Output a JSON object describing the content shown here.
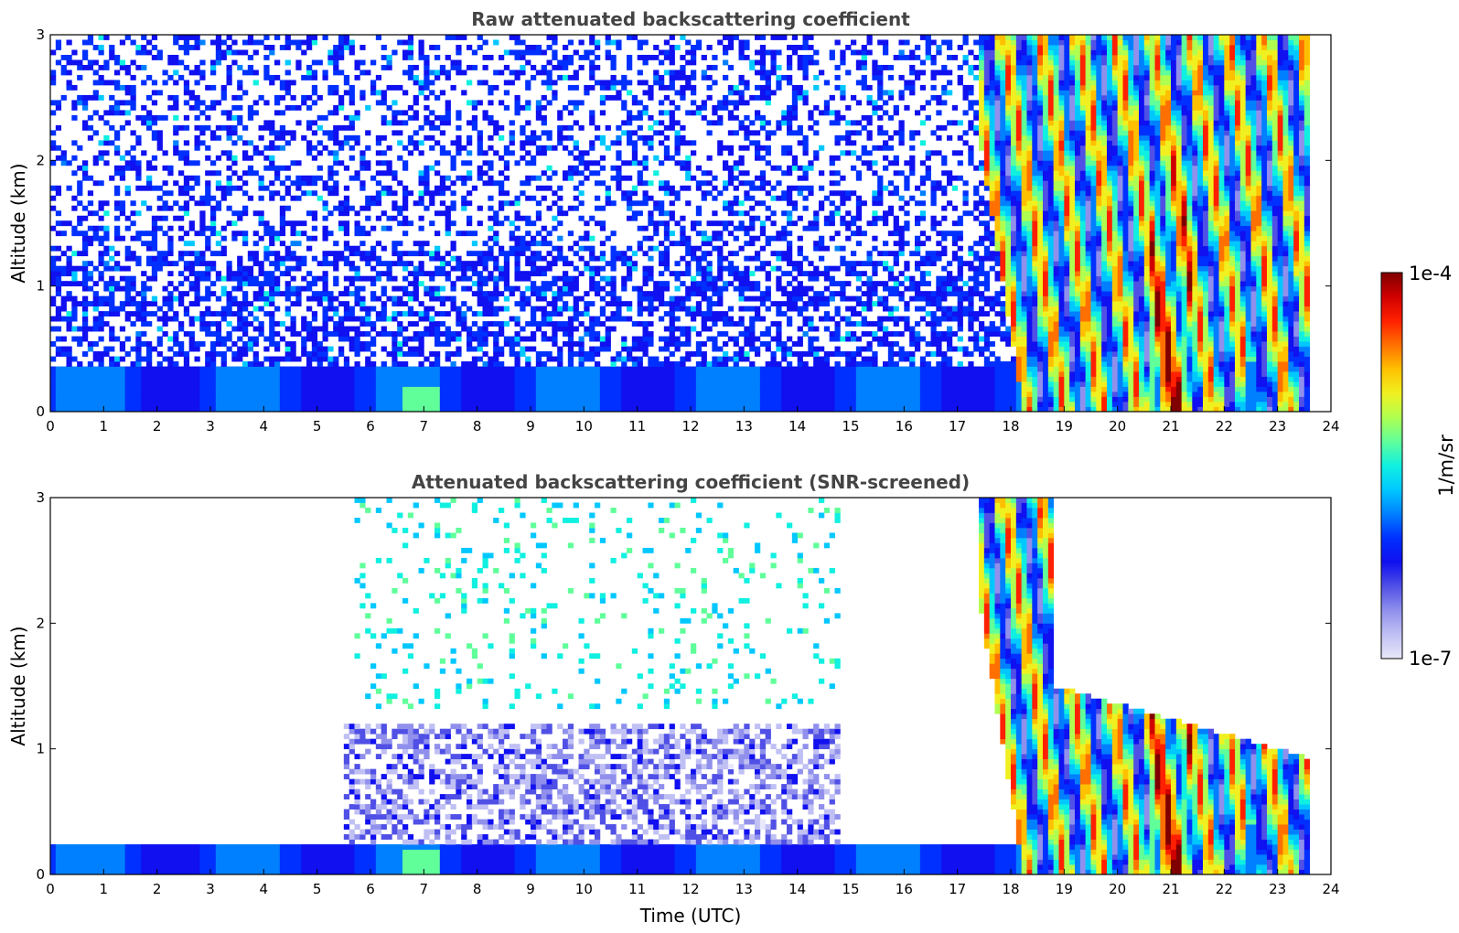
{
  "colors": {
    "background": "#ffffff",
    "axis": "#000000",
    "title": "#444444",
    "colormap": [
      "#e8e8fa",
      "#c0c0f4",
      "#9090ec",
      "#5050e6",
      "#1010f0",
      "#0030ff",
      "#0080ff",
      "#00c8ff",
      "#10f0e0",
      "#60ff9a",
      "#b0ff50",
      "#f0f020",
      "#ffc000",
      "#ff7000",
      "#ff2000",
      "#d00000",
      "#800000"
    ]
  },
  "colorbar": {
    "max_label": "1e-4",
    "min_label": "1e-7",
    "unit_label": "1/m/sr"
  },
  "chart_data": [
    {
      "type": "heatmap",
      "title": "Raw attenuated backscattering coefficient",
      "xlabel": "",
      "ylabel": "Altitude (km)",
      "xlim": [
        0,
        24
      ],
      "ylim": [
        0,
        3
      ],
      "x_ticks": [
        "0",
        "1",
        "2",
        "3",
        "4",
        "5",
        "6",
        "7",
        "8",
        "9",
        "10",
        "11",
        "12",
        "13",
        "14",
        "15",
        "16",
        "17",
        "18",
        "19",
        "20",
        "21",
        "22",
        "23",
        "24"
      ],
      "y_ticks": [
        "0",
        "1",
        "2",
        "3"
      ],
      "data_end_hour": 23.55,
      "boundary_layer_top_km": 0.35,
      "cloud_onset_hour": 17.4
    },
    {
      "type": "heatmap",
      "title": "Attenuated backscattering coefficient (SNR-screened)",
      "xlabel": "Time (UTC)",
      "ylabel": "Altitude (km)",
      "xlim": [
        0,
        24
      ],
      "ylim": [
        0,
        3
      ],
      "x_ticks": [
        "0",
        "1",
        "2",
        "3",
        "4",
        "5",
        "6",
        "7",
        "8",
        "9",
        "10",
        "11",
        "12",
        "13",
        "14",
        "15",
        "16",
        "17",
        "18",
        "19",
        "20",
        "21",
        "22",
        "23",
        "24"
      ],
      "y_ticks": [
        "0",
        "1",
        "2",
        "3"
      ],
      "data_end_hour": 23.55,
      "boundary_layer_top_km": 0.25,
      "cloud_onset_hour": 17.4
    }
  ]
}
